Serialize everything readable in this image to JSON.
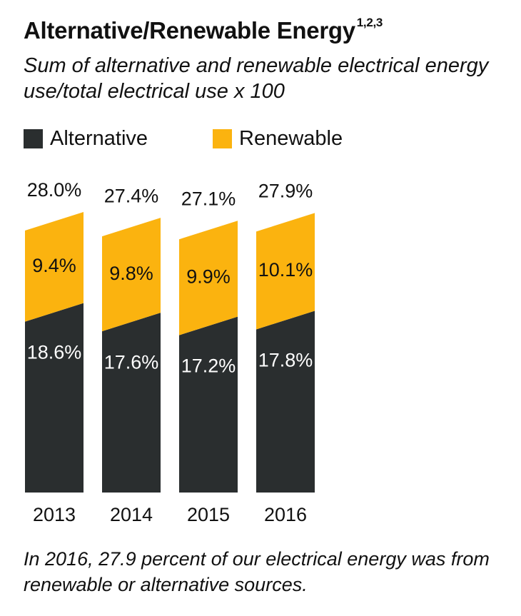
{
  "title": "Alternative/Renewable Energy",
  "title_superscript": "1,2,3",
  "subtitle": "Sum of alternative and renewable electrical energy use/total electrical use x 100",
  "legend": [
    {
      "label": "Alternative",
      "color": "#2a2e2f"
    },
    {
      "label": "Renewable",
      "color": "#fbb30f"
    }
  ],
  "chart_data": {
    "type": "bar",
    "stacked": true,
    "categories": [
      "2013",
      "2014",
      "2015",
      "2016"
    ],
    "series": [
      {
        "name": "Alternative",
        "color": "#2a2e2f",
        "values": [
          18.6,
          17.6,
          17.2,
          17.8
        ],
        "labels": [
          "18.6%",
          "17.6%",
          "17.2%",
          "17.8%"
        ]
      },
      {
        "name": "Renewable",
        "color": "#fbb30f",
        "values": [
          9.4,
          9.8,
          9.9,
          10.1
        ],
        "labels": [
          "9.4%",
          "9.8%",
          "9.9%",
          "10.1%"
        ]
      }
    ],
    "totals": [
      28.0,
      27.4,
      27.1,
      27.9
    ],
    "total_labels": [
      "28.0%",
      "27.4%",
      "27.1%",
      "27.9%"
    ],
    "title": "Alternative/Renewable Energy",
    "xlabel": "",
    "ylabel": ""
  },
  "footnote": "In 2016, 27.9 percent of our electrical energy was from renewable or alternative sources."
}
